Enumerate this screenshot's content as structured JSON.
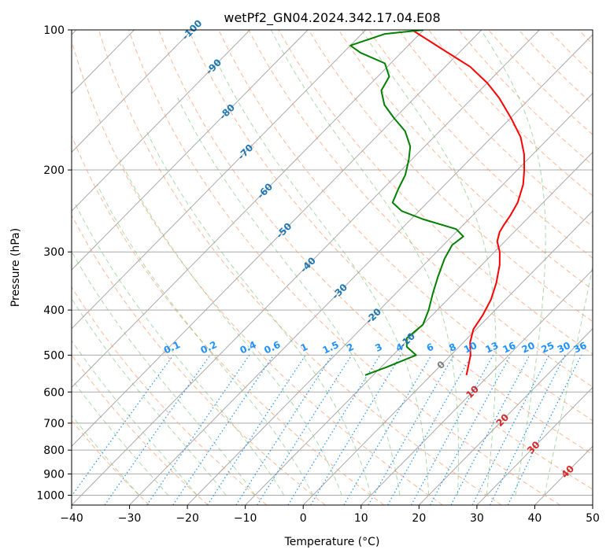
{
  "chart_data": {
    "type": "line",
    "title": "wetPf2_GN04.2024.342.17.04.E08",
    "xlabel": "Temperature (°C)",
    "ylabel": "Pressure (hPa)",
    "xlim": [
      -40,
      50
    ],
    "ylim": [
      1050,
      100
    ],
    "y_scale": "log",
    "grid": true,
    "x_ticks": [
      -40,
      -30,
      -20,
      -10,
      0,
      10,
      20,
      30,
      40,
      50
    ],
    "y_ticks": [
      100,
      200,
      300,
      400,
      500,
      600,
      700,
      800,
      900,
      1000
    ],
    "colors": {
      "temperature": "#ff0000",
      "dewpoint": "#008000",
      "isotherm_grid": "#a9a9a9",
      "dry_adiabat": "#ff9966",
      "moist_adiabat": "#66bb66",
      "mixing_ratio": "#1e90ff",
      "isotherm_labels_cold": "#1f77b4",
      "isotherm_labels_warm": "#d62728"
    },
    "series": [
      {
        "key": "temperature",
        "points": [
          {
            "p": 552,
            "t": 6.1
          },
          {
            "p": 530,
            "t": 5.0
          },
          {
            "p": 500,
            "t": 3.4
          },
          {
            "p": 470,
            "t": 1.2
          },
          {
            "p": 440,
            "t": -0.5
          },
          {
            "p": 410,
            "t": -1.3
          },
          {
            "p": 380,
            "t": -2.5
          },
          {
            "p": 350,
            "t": -4.4
          },
          {
            "p": 320,
            "t": -6.9
          },
          {
            "p": 300,
            "t": -9.1
          },
          {
            "p": 285,
            "t": -11.3
          },
          {
            "p": 272,
            "t": -12.5
          },
          {
            "p": 262,
            "t": -13.0
          },
          {
            "p": 250,
            "t": -13.5
          },
          {
            "p": 235,
            "t": -14.4
          },
          {
            "p": 215,
            "t": -16.5
          },
          {
            "p": 200,
            "t": -18.8
          },
          {
            "p": 185,
            "t": -21.5
          },
          {
            "p": 170,
            "t": -25.0
          },
          {
            "p": 155,
            "t": -29.8
          },
          {
            "p": 140,
            "t": -35.4
          },
          {
            "p": 130,
            "t": -40.0
          },
          {
            "p": 120,
            "t": -45.7
          },
          {
            "p": 110,
            "t": -53.5
          },
          {
            "p": 100,
            "t": -62.0
          }
        ]
      },
      {
        "key": "dewpoint",
        "points": [
          {
            "p": 552,
            "t": -11.4
          },
          {
            "p": 530,
            "t": -9.0
          },
          {
            "p": 500,
            "t": -6.0
          },
          {
            "p": 480,
            "t": -9.0
          },
          {
            "p": 460,
            "t": -10.5
          },
          {
            "p": 430,
            "t": -10.0
          },
          {
            "p": 400,
            "t": -11.5
          },
          {
            "p": 370,
            "t": -13.5
          },
          {
            "p": 340,
            "t": -15.5
          },
          {
            "p": 310,
            "t": -17.5
          },
          {
            "p": 290,
            "t": -18.5
          },
          {
            "p": 278,
            "t": -18.0
          },
          {
            "p": 268,
            "t": -20.5
          },
          {
            "p": 255,
            "t": -28.0
          },
          {
            "p": 245,
            "t": -33.0
          },
          {
            "p": 235,
            "t": -36.0
          },
          {
            "p": 220,
            "t": -37.3
          },
          {
            "p": 205,
            "t": -38.5
          },
          {
            "p": 190,
            "t": -40.5
          },
          {
            "p": 178,
            "t": -42.5
          },
          {
            "p": 165,
            "t": -46.0
          },
          {
            "p": 155,
            "t": -50.0
          },
          {
            "p": 145,
            "t": -54.0
          },
          {
            "p": 135,
            "t": -57.0
          },
          {
            "p": 126,
            "t": -58.0
          },
          {
            "p": 118,
            "t": -61.0
          },
          {
            "p": 112,
            "t": -67.0
          },
          {
            "p": 108,
            "t": -70.0
          },
          {
            "p": 102,
            "t": -66.0
          },
          {
            "p": 100,
            "t": -60.0
          }
        ]
      }
    ],
    "isotherm_labels": [
      "-100",
      "-90",
      "-80",
      "-70",
      "-60",
      "-50",
      "-40",
      "-30",
      "-20",
      "-10",
      "0",
      "10",
      "20",
      "30",
      "40"
    ],
    "mixing_ratio_labels": [
      "0.1",
      "0.2",
      "0.4",
      "0.6",
      "1",
      "1.5",
      "2",
      "3",
      "4",
      "6",
      "8",
      "10",
      "13",
      "16",
      "20",
      "25",
      "30",
      "36"
    ]
  }
}
